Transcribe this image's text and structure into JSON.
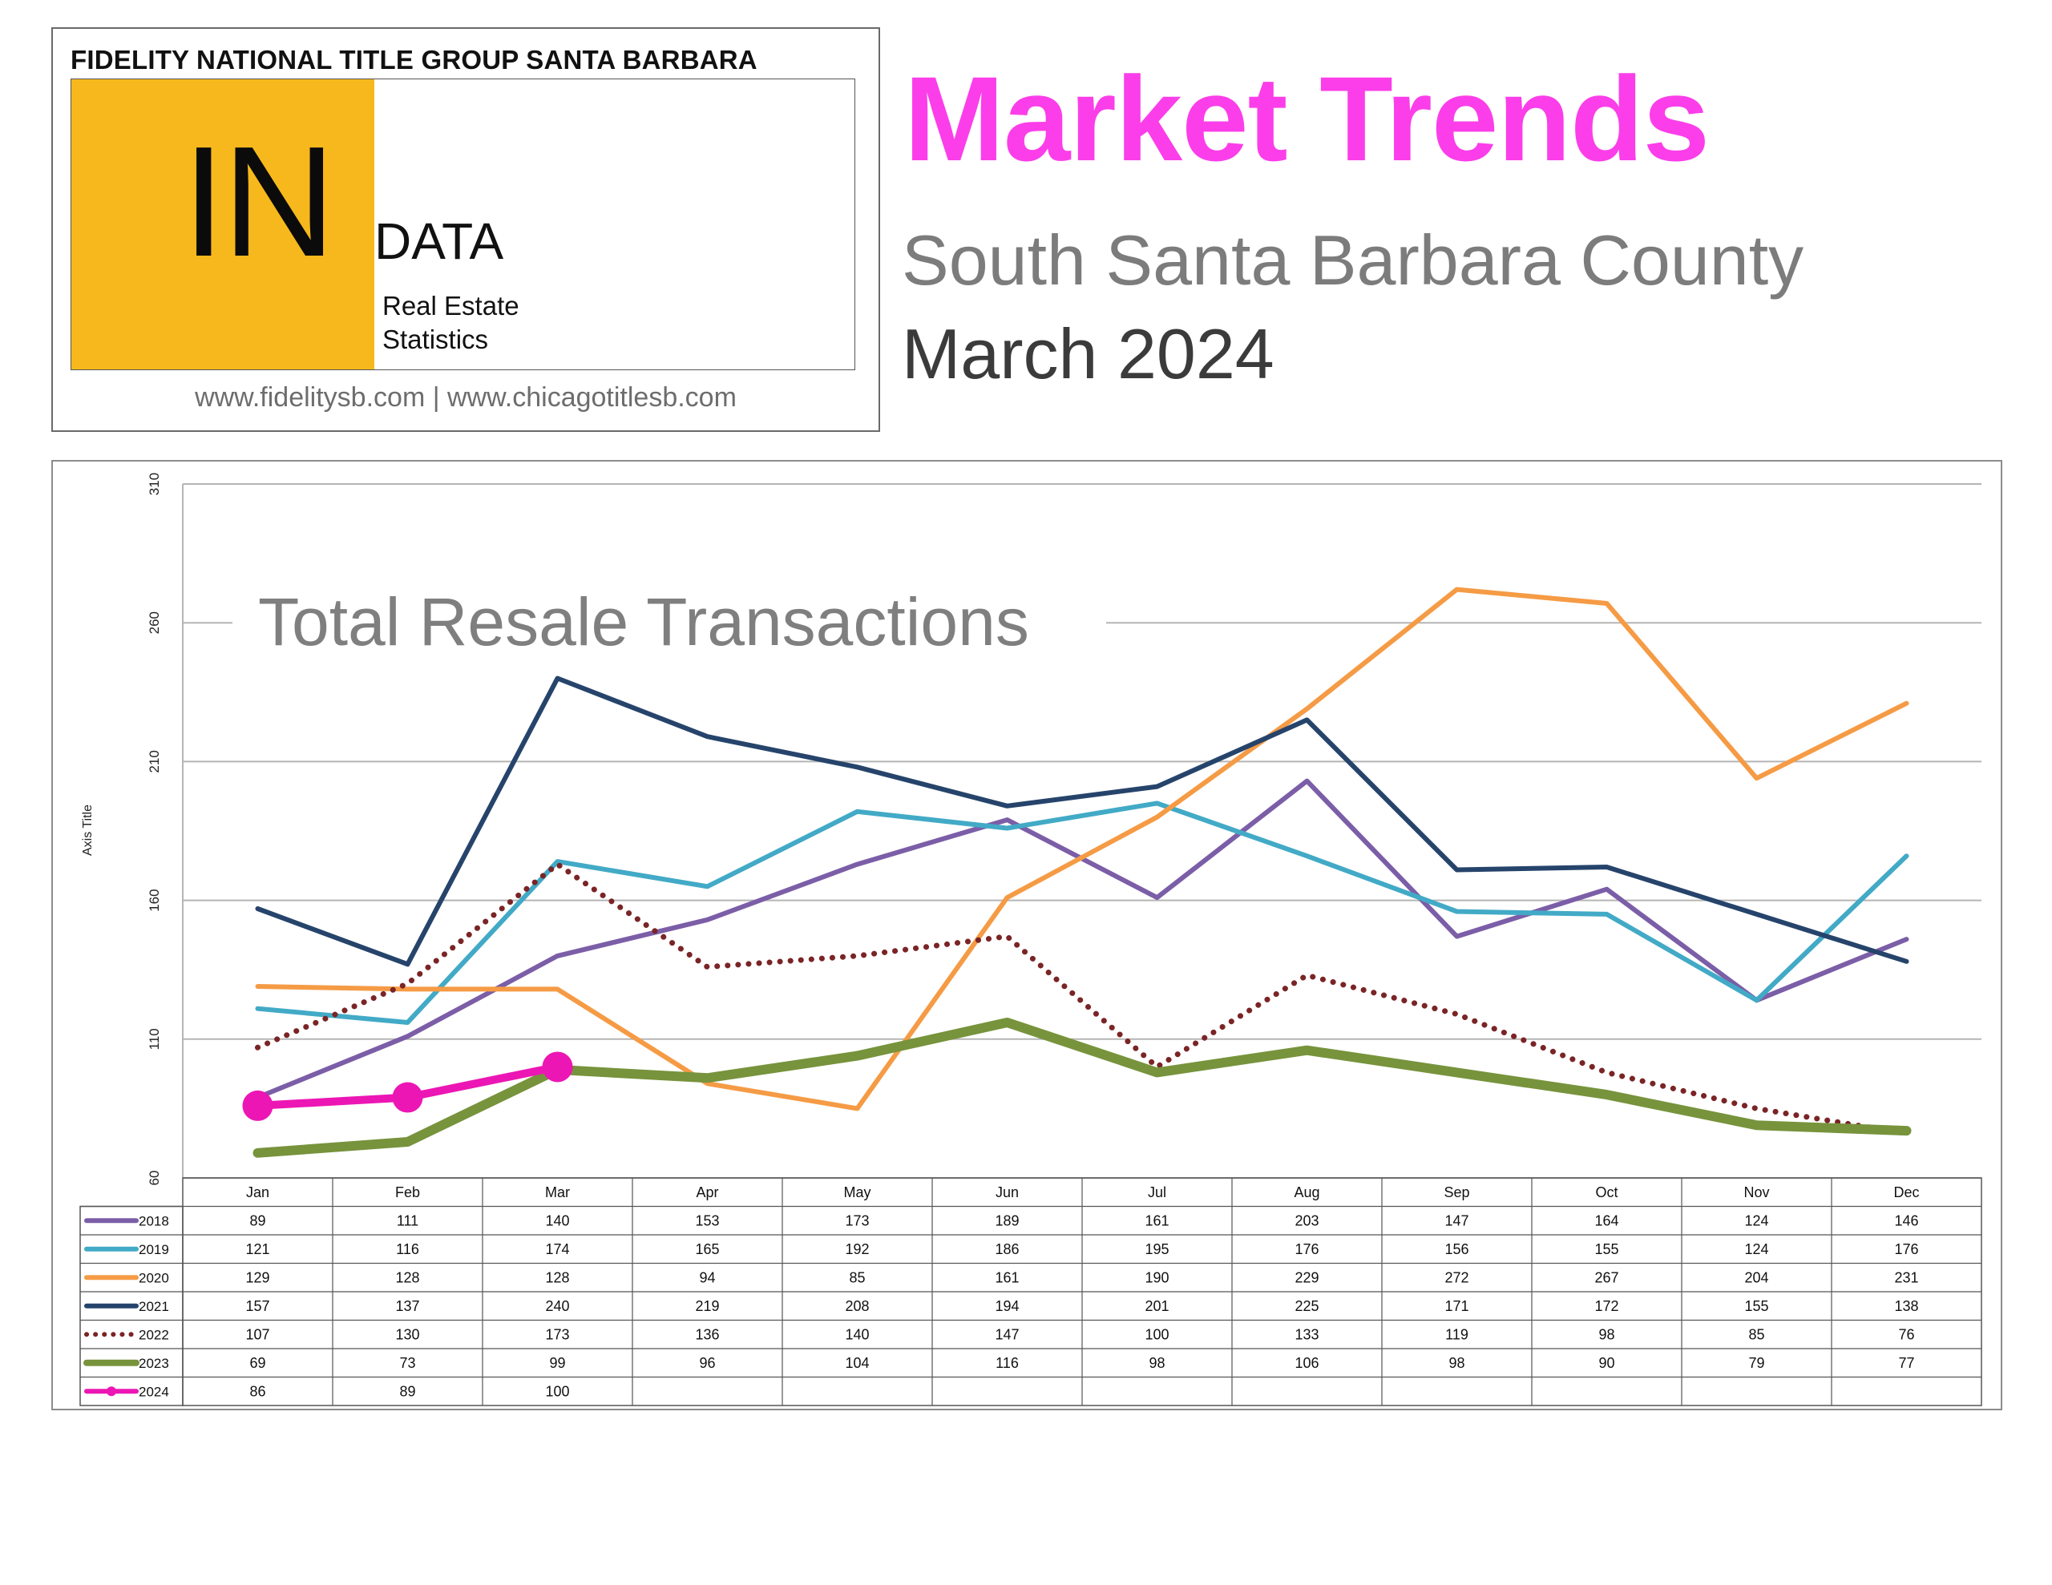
{
  "header": {
    "company": "FIDELITY NATIONAL TITLE GROUP SANTA BARBARA",
    "logo_big": "IN",
    "logo_word": "DATA",
    "logo_sub1": "Real Estate",
    "logo_sub2": "Statistics",
    "urls": "www.fidelitysb.com | www.chicagotitlesb.com"
  },
  "titles": {
    "main": "Market Trends",
    "region": "South Santa Barbara County",
    "date": "March 2024"
  },
  "colors": {
    "title_magenta": "#fb3ee9",
    "logo_yellow": "#f6b81c"
  },
  "chart_data": {
    "type": "line",
    "title": "Total Resale Transactions",
    "xlabel": "",
    "ylabel": "Axis Title",
    "ylim": [
      60,
      310
    ],
    "yticks": [
      60,
      110,
      160,
      210,
      260,
      310
    ],
    "grid": true,
    "legend": "table-below",
    "categories": [
      "Jan",
      "Feb",
      "Mar",
      "Apr",
      "May",
      "Jun",
      "Jul",
      "Aug",
      "Sep",
      "Oct",
      "Nov",
      "Dec"
    ],
    "series": [
      {
        "name": "2018",
        "color": "#7b5ea7",
        "style": "solid",
        "values": [
          89,
          111,
          140,
          153,
          173,
          189,
          161,
          203,
          147,
          164,
          124,
          146
        ]
      },
      {
        "name": "2019",
        "color": "#42aac6",
        "style": "solid",
        "values": [
          121,
          116,
          174,
          165,
          192,
          186,
          195,
          176,
          156,
          155,
          124,
          176
        ]
      },
      {
        "name": "2020",
        "color": "#f59b45",
        "style": "solid",
        "values": [
          129,
          128,
          128,
          94,
          85,
          161,
          190,
          229,
          272,
          267,
          204,
          231
        ]
      },
      {
        "name": "2021",
        "color": "#26446b",
        "style": "solid",
        "values": [
          157,
          137,
          240,
          219,
          208,
          194,
          201,
          225,
          171,
          172,
          155,
          138
        ]
      },
      {
        "name": "2022",
        "color": "#7a2426",
        "style": "dotted",
        "values": [
          107,
          130,
          173,
          136,
          140,
          147,
          100,
          133,
          119,
          98,
          85,
          76
        ]
      },
      {
        "name": "2023",
        "color": "#77933c",
        "style": "thick",
        "values": [
          69,
          73,
          99,
          96,
          104,
          116,
          98,
          106,
          98,
          90,
          79,
          77
        ]
      },
      {
        "name": "2024",
        "color": "#ec16b4",
        "style": "markers",
        "values": [
          86,
          89,
          100,
          null,
          null,
          null,
          null,
          null,
          null,
          null,
          null,
          null
        ]
      }
    ]
  }
}
